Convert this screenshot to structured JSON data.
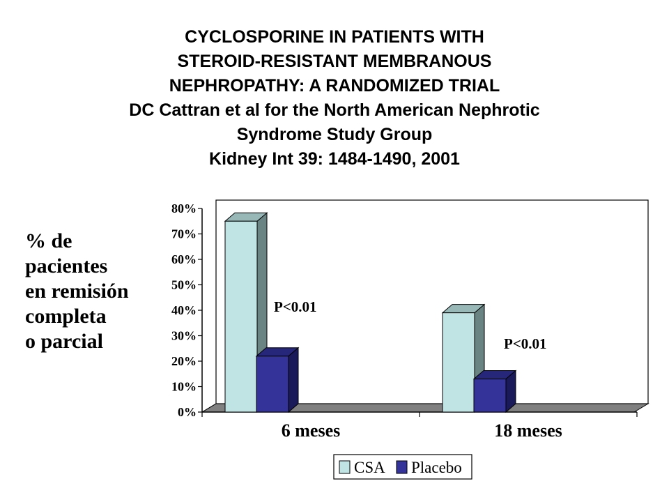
{
  "title_lines": [
    "CYCLOSPORINE IN PATIENTS WITH",
    "STEROID-RESISTANT MEMBRANOUS",
    "NEPHROPATHY: A RANDOMIZED TRIAL",
    "DC Cattran et al for the North American Nephrotic",
    "Syndrome  Study Group",
    "Kidney Int 39: 1484-1490, 2001"
  ],
  "ylabel_lines": [
    "% de",
    "pacientes",
    "en remisión",
    "completa",
    "o parcial"
  ],
  "colors": {
    "csa_front": "#c0e4e4",
    "csa_side": "#6a8484",
    "csa_top": "#98b8b8",
    "placebo_front": "#33339a",
    "placebo_side": "#1a1a5a",
    "placebo_top": "#26267a",
    "floor": "#808080"
  },
  "chart_data": {
    "type": "bar",
    "categories": [
      "6 meses",
      "18 meses"
    ],
    "series": [
      {
        "name": "CSA",
        "values": [
          75,
          39
        ]
      },
      {
        "name": "Placebo",
        "values": [
          22,
          13
        ]
      }
    ],
    "yticks": [
      "0%",
      "10%",
      "20%",
      "30%",
      "40%",
      "50%",
      "60%",
      "70%",
      "80%"
    ],
    "ylim": [
      0,
      80
    ],
    "annotations": [
      "P<0.01",
      "P<0.01"
    ],
    "legend_position": "bottom",
    "three_d": true,
    "grid": false
  }
}
